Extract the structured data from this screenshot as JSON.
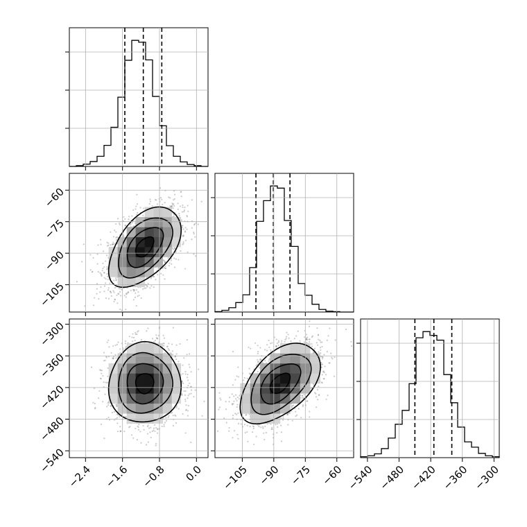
{
  "chart_data": {
    "type": "corner",
    "grid": true,
    "parameters": [
      {
        "name": "",
        "lim": [
          -2.75,
          0.25
        ],
        "ticks": [
          -2.4,
          -1.6,
          -0.8,
          0.0
        ],
        "tick_labels": [
          "−2.4",
          "−1.6",
          "−0.8",
          "0.0"
        ],
        "quantiles": [
          -1.55,
          -1.15,
          -0.75
        ]
      },
      {
        "name": "",
        "lim": [
          -118,
          -52
        ],
        "ticks": [
          -105,
          -90,
          -75,
          -60
        ],
        "tick_labels": [
          "−105",
          "−90",
          "−75",
          "−60"
        ],
        "quantiles": [
          -98.5,
          -90.2,
          -82.3
        ]
      },
      {
        "name": "",
        "lim": [
          -553,
          -290
        ],
        "ticks": [
          -540,
          -480,
          -420,
          -360,
          -300
        ],
        "tick_labels": [
          "−540",
          "−480",
          "−420",
          "−360",
          "−300"
        ],
        "quantiles": [
          -450,
          -414,
          -380
        ]
      }
    ],
    "marginals": [
      {
        "parameter": 0,
        "bin_edges": [
          -2.75,
          -2.6,
          -2.45,
          -2.3,
          -2.15,
          -2.0,
          -1.85,
          -1.7,
          -1.55,
          -1.4,
          -1.25,
          -1.1,
          -0.95,
          -0.8,
          -0.65,
          -0.5,
          -0.35,
          -0.2,
          -0.05,
          0.1,
          0.25
        ],
        "counts": [
          0,
          2,
          6,
          13,
          27,
          56,
          104,
          184,
          282,
          335,
          330,
          283,
          186,
          108,
          55,
          27,
          12,
          5,
          2,
          0
        ]
      },
      {
        "parameter": 1,
        "bin_edges": [
          -118,
          -114.7,
          -111.4,
          -108.1,
          -104.8,
          -101.5,
          -98.2,
          -94.9,
          -91.6,
          -88.3,
          -85.0,
          -81.7,
          -78.4,
          -75.1,
          -71.8,
          -68.5,
          -65.2,
          -61.9,
          -58.6,
          -55.3,
          -52.0
        ],
        "counts": [
          1,
          4,
          10,
          22,
          40,
          103,
          210,
          258,
          292,
          287,
          212,
          152,
          66,
          39,
          18,
          6,
          2,
          1,
          0,
          0
        ]
      },
      {
        "parameter": 2,
        "bin_edges": [
          -553,
          -539.85,
          -526.7,
          -513.55,
          -500.4,
          -487.25,
          -474.1,
          -460.95,
          -447.8,
          -434.65,
          -421.5,
          -408.35,
          -395.2,
          -382.05,
          -368.9,
          -355.75,
          -342.6,
          -329.45,
          -316.3,
          -303.15,
          -290.0
        ],
        "counts": [
          2,
          4,
          8,
          19,
          41,
          70,
          99,
          155,
          251,
          264,
          256,
          246,
          174,
          115,
          64,
          33,
          22,
          9,
          4,
          2
        ]
      }
    ],
    "joint": [
      {
        "x_param": 0,
        "y_param": 1,
        "mean": [
          -1.12,
          -87.0
        ],
        "sd": [
          0.39,
          9.5
        ],
        "corr": 0.5,
        "contour_levels": [
          0.5,
          1.0,
          1.5,
          2.0
        ],
        "points": 2000
      },
      {
        "x_param": 0,
        "y_param": 2,
        "mean": [
          -1.12,
          -412.0
        ],
        "sd": [
          0.39,
          38.0
        ],
        "corr": 0.03,
        "contour_levels": [
          0.5,
          1.0,
          1.5,
          2.0
        ],
        "points": 2000
      },
      {
        "x_param": 1,
        "y_param": 2,
        "mean": [
          -87.0,
          -412.0
        ],
        "sd": [
          9.5,
          38.0
        ],
        "corr": 0.5,
        "contour_levels": [
          0.5,
          1.0,
          1.5,
          2.0
        ],
        "points": 2000
      }
    ]
  }
}
